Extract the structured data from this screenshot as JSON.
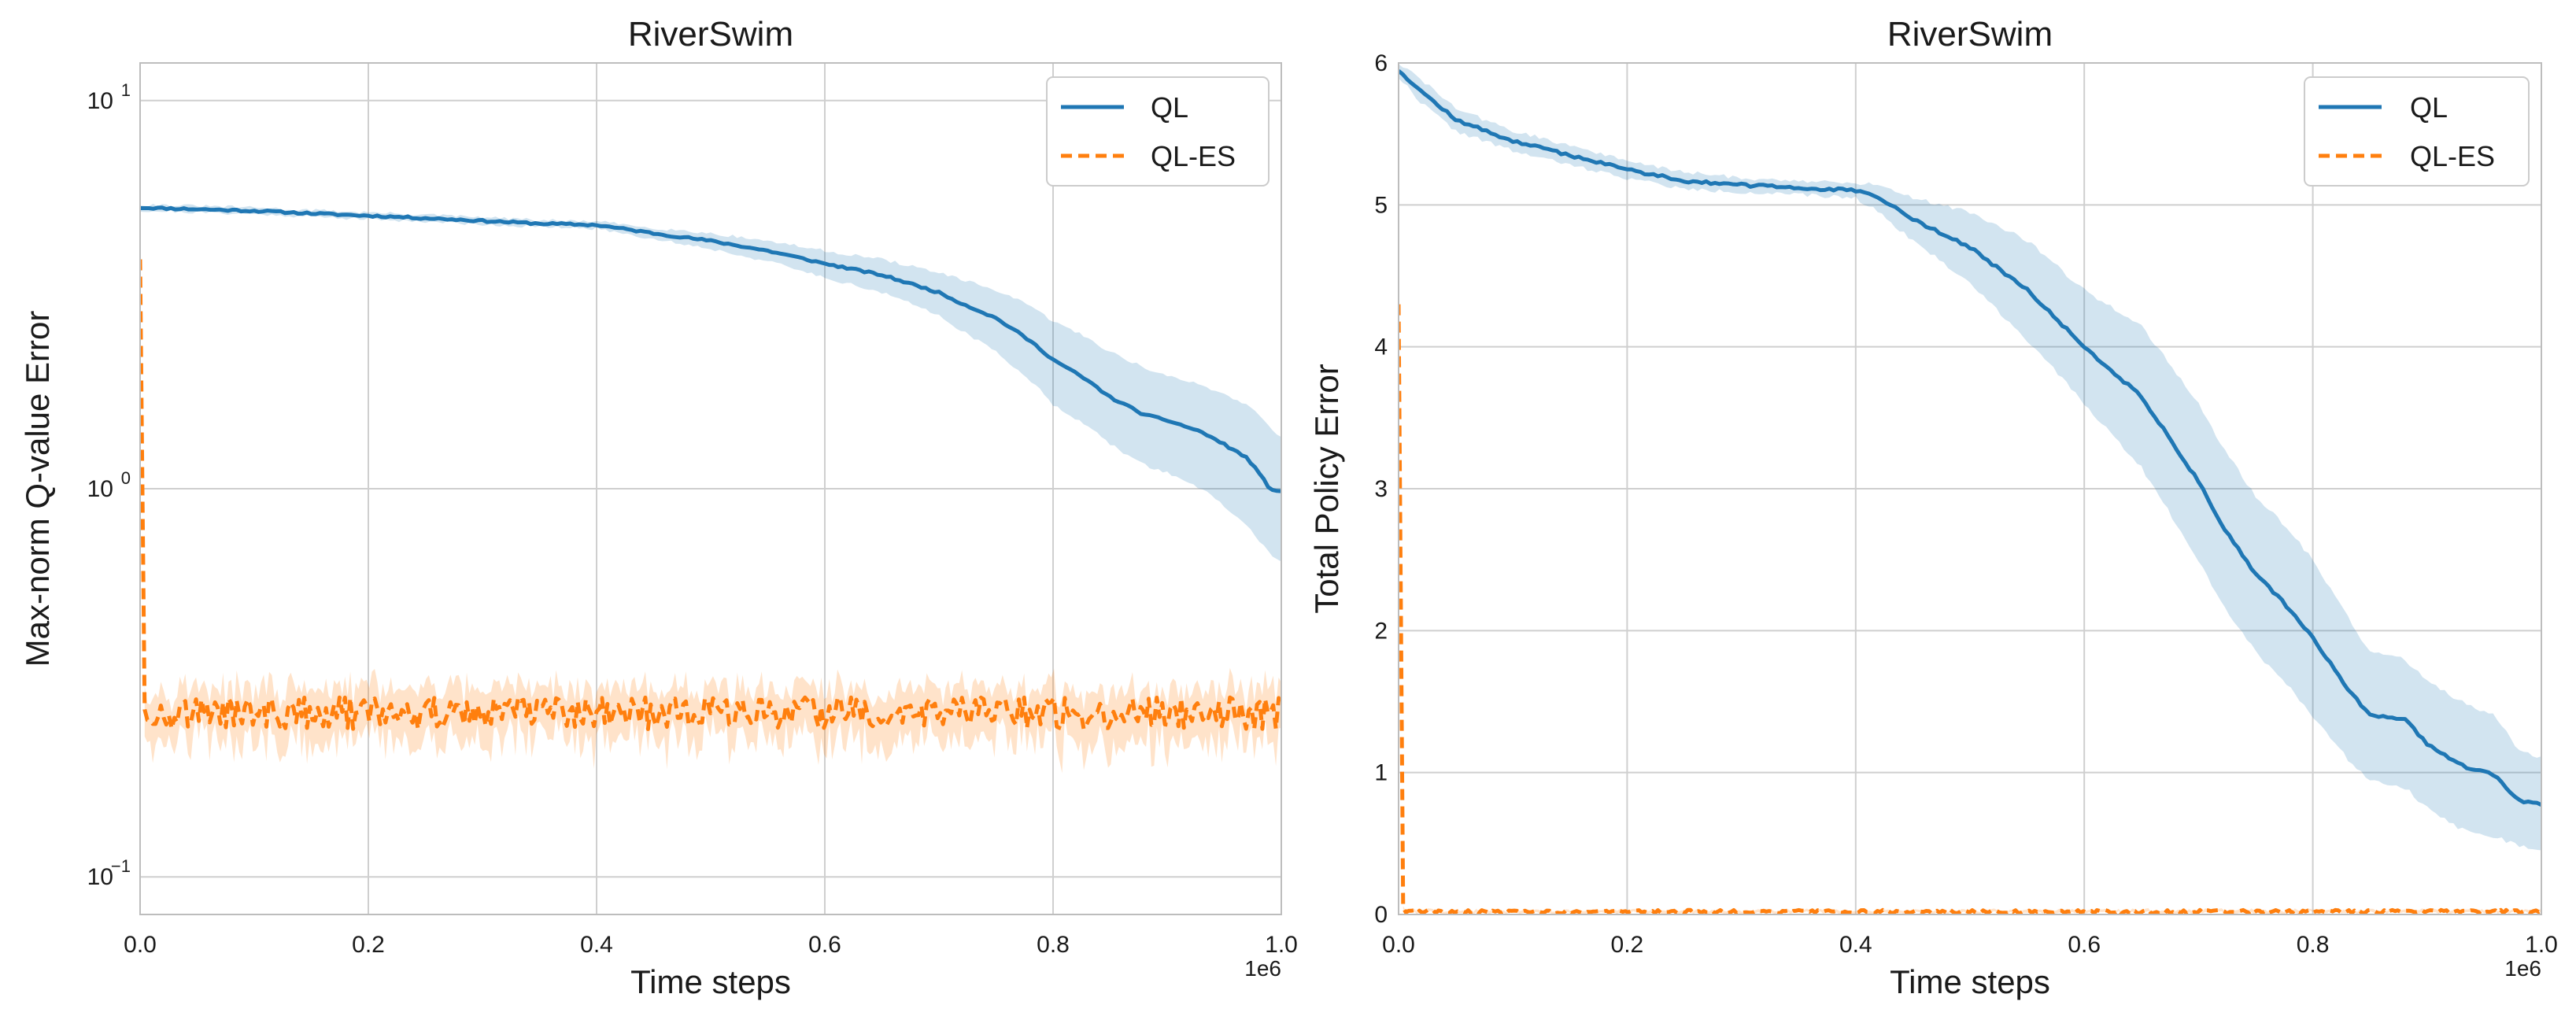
{
  "colors": {
    "ql": "#1f77b4",
    "ql_es": "#ff7f0e",
    "ql_band": "#1f77b4",
    "ql_es_band": "#ff7f0e",
    "grid": "#cfcfcf",
    "spine": "#bdbdbd"
  },
  "chart_data": [
    {
      "type": "line",
      "title": "RiverSwim",
      "xlabel": "Time steps",
      "ylabel": "Max-norm Q-value Error",
      "yscale": "log",
      "xlim": [
        0,
        1.0
      ],
      "ylim": [
        0.08,
        12.5
      ],
      "x_offset_label": "1e6",
      "xticks": [
        0.0,
        0.2,
        0.4,
        0.6,
        0.8,
        1.0
      ],
      "xtick_labels": [
        "0.0",
        "0.2",
        "0.4",
        "0.6",
        "0.8",
        "1.0"
      ],
      "yticks": [
        0.1,
        1,
        10
      ],
      "ytick_labels": [
        {
          "base": "10",
          "exp": "−1"
        },
        {
          "base": "10",
          "exp": "0"
        },
        {
          "base": "10",
          "exp": "1"
        }
      ],
      "grid": true,
      "legend": {
        "position": "top-right",
        "entries": [
          "QL",
          "QL-ES"
        ]
      },
      "series": [
        {
          "name": "QL",
          "style": "solid",
          "x": [
            0,
            0.05,
            0.1,
            0.15,
            0.2,
            0.25,
            0.3,
            0.35,
            0.4,
            0.45,
            0.5,
            0.55,
            0.6,
            0.65,
            0.7,
            0.72,
            0.75,
            0.78,
            0.8,
            0.83,
            0.85,
            0.88,
            0.9,
            0.93,
            0.95,
            0.97,
            0.99,
            1.0
          ],
          "values": [
            5.3,
            5.25,
            5.2,
            5.12,
            5.05,
            4.98,
            4.9,
            4.82,
            4.78,
            4.55,
            4.35,
            4.1,
            3.8,
            3.55,
            3.2,
            3.0,
            2.75,
            2.4,
            2.15,
            1.9,
            1.72,
            1.55,
            1.5,
            1.4,
            1.3,
            1.2,
            1.0,
            0.98
          ],
          "lower": [
            5.2,
            5.15,
            5.1,
            5.02,
            4.95,
            4.88,
            4.8,
            4.72,
            4.68,
            4.4,
            4.15,
            3.85,
            3.5,
            3.2,
            2.8,
            2.55,
            2.25,
            1.9,
            1.65,
            1.45,
            1.3,
            1.15,
            1.1,
            1.0,
            0.9,
            0.8,
            0.68,
            0.65
          ],
          "upper": [
            5.4,
            5.35,
            5.3,
            5.22,
            5.15,
            5.08,
            5.0,
            4.92,
            4.88,
            4.7,
            4.55,
            4.35,
            4.1,
            3.9,
            3.6,
            3.45,
            3.25,
            2.95,
            2.7,
            2.45,
            2.25,
            2.05,
            1.95,
            1.85,
            1.75,
            1.65,
            1.45,
            1.35
          ]
        },
        {
          "name": "QL-ES",
          "style": "dashed",
          "initial": [
            3.9,
            0.27
          ],
          "baseline": 0.265,
          "noise": 0.025,
          "band": 0.04
        }
      ]
    },
    {
      "type": "line",
      "title": "RiverSwim",
      "xlabel": "Time steps",
      "ylabel": "Total Policy Error",
      "yscale": "linear",
      "xlim": [
        0,
        1.0
      ],
      "ylim": [
        0,
        6
      ],
      "x_offset_label": "1e6",
      "xticks": [
        0.0,
        0.2,
        0.4,
        0.6,
        0.8,
        1.0
      ],
      "xtick_labels": [
        "0.0",
        "0.2",
        "0.4",
        "0.6",
        "0.8",
        "1.0"
      ],
      "yticks": [
        0,
        1,
        2,
        3,
        4,
        5,
        6
      ],
      "ytick_labels": [
        "0",
        "1",
        "2",
        "3",
        "4",
        "5",
        "6"
      ],
      "grid": true,
      "legend": {
        "position": "top-right",
        "entries": [
          "QL",
          "QL-ES"
        ]
      },
      "series": [
        {
          "name": "QL",
          "style": "solid",
          "x": [
            0,
            0.02,
            0.05,
            0.1,
            0.15,
            0.2,
            0.25,
            0.3,
            0.35,
            0.4,
            0.42,
            0.45,
            0.5,
            0.55,
            0.6,
            0.65,
            0.7,
            0.72,
            0.75,
            0.78,
            0.8,
            0.83,
            0.85,
            0.88,
            0.9,
            0.93,
            0.96,
            0.98,
            1.0
          ],
          "values": [
            5.95,
            5.8,
            5.6,
            5.45,
            5.35,
            5.25,
            5.17,
            5.14,
            5.12,
            5.1,
            5.05,
            4.9,
            4.7,
            4.4,
            4.0,
            3.65,
            3.05,
            2.75,
            2.4,
            2.15,
            1.95,
            1.6,
            1.4,
            1.38,
            1.2,
            1.05,
            0.98,
            0.8,
            0.78
          ],
          "lower": [
            5.9,
            5.72,
            5.52,
            5.38,
            5.28,
            5.19,
            5.11,
            5.09,
            5.07,
            5.05,
            4.95,
            4.75,
            4.45,
            4.05,
            3.6,
            3.15,
            2.5,
            2.2,
            1.85,
            1.6,
            1.4,
            1.1,
            0.95,
            0.9,
            0.75,
            0.6,
            0.55,
            0.48,
            0.45
          ],
          "upper": [
            6.0,
            5.88,
            5.68,
            5.52,
            5.42,
            5.31,
            5.23,
            5.19,
            5.17,
            5.15,
            5.15,
            5.05,
            4.95,
            4.75,
            4.4,
            4.15,
            3.6,
            3.3,
            2.95,
            2.7,
            2.5,
            2.1,
            1.85,
            1.8,
            1.65,
            1.5,
            1.4,
            1.15,
            1.1
          ]
        },
        {
          "name": "QL-ES",
          "style": "dashed",
          "initial": [
            4.3,
            0.05
          ],
          "baseline": 0.02,
          "noise": 0.012,
          "band": 0.01
        }
      ]
    }
  ]
}
